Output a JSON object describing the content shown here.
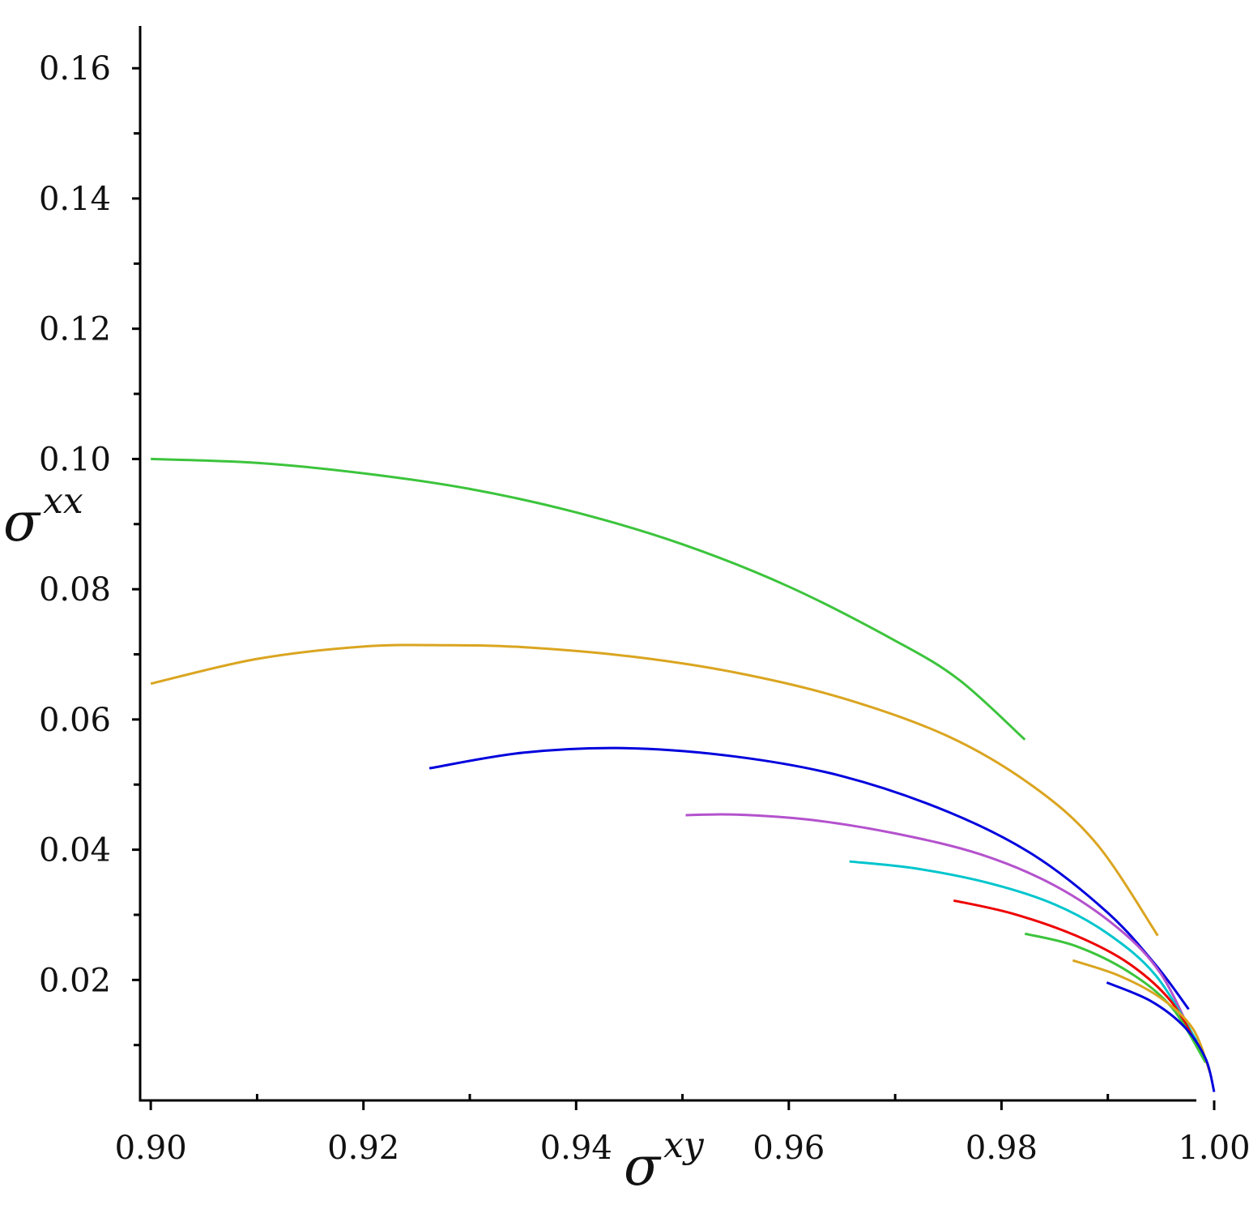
{
  "chart_data": {
    "type": "line",
    "xlabel": "σ",
    "xlabel_superscript": "xy",
    "ylabel": "σ",
    "ylabel_superscript": "xx",
    "xlim": [
      0.899,
      1.0
    ],
    "ylim": [
      0.0015,
      0.1665
    ],
    "x_ticks": [
      {
        "value": 0.9,
        "label": "0.90"
      },
      {
        "value": 0.92,
        "label": "0.92"
      },
      {
        "value": 0.94,
        "label": "0.94"
      },
      {
        "value": 0.96,
        "label": "0.96"
      },
      {
        "value": 0.98,
        "label": "0.98"
      },
      {
        "value": 1.0,
        "label": "1.00"
      }
    ],
    "x_minor_ticks": [
      0.91,
      0.93,
      0.95,
      0.97,
      0.99
    ],
    "y_ticks": [
      {
        "value": 0.02,
        "label": "0.02"
      },
      {
        "value": 0.04,
        "label": "0.04"
      },
      {
        "value": 0.06,
        "label": "0.06"
      },
      {
        "value": 0.08,
        "label": "0.08"
      },
      {
        "value": 0.1,
        "label": "0.10"
      },
      {
        "value": 0.12,
        "label": "0.12"
      },
      {
        "value": 0.14,
        "label": "0.14"
      },
      {
        "value": 0.16,
        "label": "0.16"
      }
    ],
    "y_minor_ticks": [
      0.01,
      0.03,
      0.05,
      0.07,
      0.09,
      0.11,
      0.13,
      0.15
    ],
    "grid": false,
    "legend": "none",
    "series": [
      {
        "color": "#3cc43c",
        "x": [
          0.9,
          0.91,
          0.92,
          0.93,
          0.94,
          0.95,
          0.96,
          0.97,
          0.976,
          0.9822
        ],
        "y": [
          0.1,
          0.0994,
          0.0978,
          0.0954,
          0.0918,
          0.0869,
          0.0804,
          0.0721,
          0.0661,
          0.0569
        ]
      },
      {
        "color": "#daa520",
        "x": [
          0.9,
          0.91,
          0.92,
          0.928,
          0.935,
          0.945,
          0.955,
          0.965,
          0.975,
          0.983,
          0.989,
          0.9947
        ],
        "y": [
          0.0655,
          0.0693,
          0.0712,
          0.0714,
          0.0711,
          0.0697,
          0.0672,
          0.0633,
          0.0574,
          0.0497,
          0.0408,
          0.0268
        ]
      },
      {
        "color": "#0000dd",
        "x": [
          0.9262,
          0.935,
          0.9445,
          0.955,
          0.965,
          0.975,
          0.983,
          0.99,
          0.9945,
          0.9976
        ],
        "y": [
          0.0525,
          0.0549,
          0.0556,
          0.0543,
          0.0513,
          0.0458,
          0.0392,
          0.0303,
          0.0223,
          0.0155
        ]
      },
      {
        "color": "#b452cd",
        "x": [
          0.9503,
          0.955,
          0.962,
          0.97,
          0.978,
          0.985,
          0.991,
          0.995,
          0.9982
        ],
        "y": [
          0.0453,
          0.0454,
          0.0446,
          0.0425,
          0.0393,
          0.0345,
          0.0279,
          0.0209,
          0.0105
        ]
      },
      {
        "color": "#00c5cd",
        "x": [
          0.9657,
          0.972,
          0.979,
          0.985,
          0.99,
          0.9945,
          0.9984
        ],
        "y": [
          0.0382,
          0.0371,
          0.0348,
          0.0316,
          0.0271,
          0.0207,
          0.0105
        ]
      },
      {
        "color": "#ee0000",
        "x": [
          0.9755,
          0.981,
          0.987,
          0.992,
          0.996,
          0.9988
        ],
        "y": [
          0.0322,
          0.0302,
          0.0268,
          0.0225,
          0.0166,
          0.0087
        ]
      },
      {
        "color": "#3cc43c",
        "x": [
          0.9822,
          0.987,
          0.992,
          0.996,
          0.9992
        ],
        "y": [
          0.0271,
          0.0252,
          0.0212,
          0.0158,
          0.0073
        ]
      },
      {
        "color": "#daa520",
        "x": [
          0.9867,
          0.991,
          0.995,
          0.998,
          0.9996
        ],
        "y": [
          0.023,
          0.0207,
          0.0172,
          0.0125,
          0.0058
        ]
      },
      {
        "color": "#0000dd",
        "x": [
          0.9899,
          0.994,
          0.9972,
          0.9992,
          1.0
        ],
        "y": [
          0.0196,
          0.0168,
          0.0128,
          0.0079,
          0.0028
        ]
      }
    ]
  }
}
